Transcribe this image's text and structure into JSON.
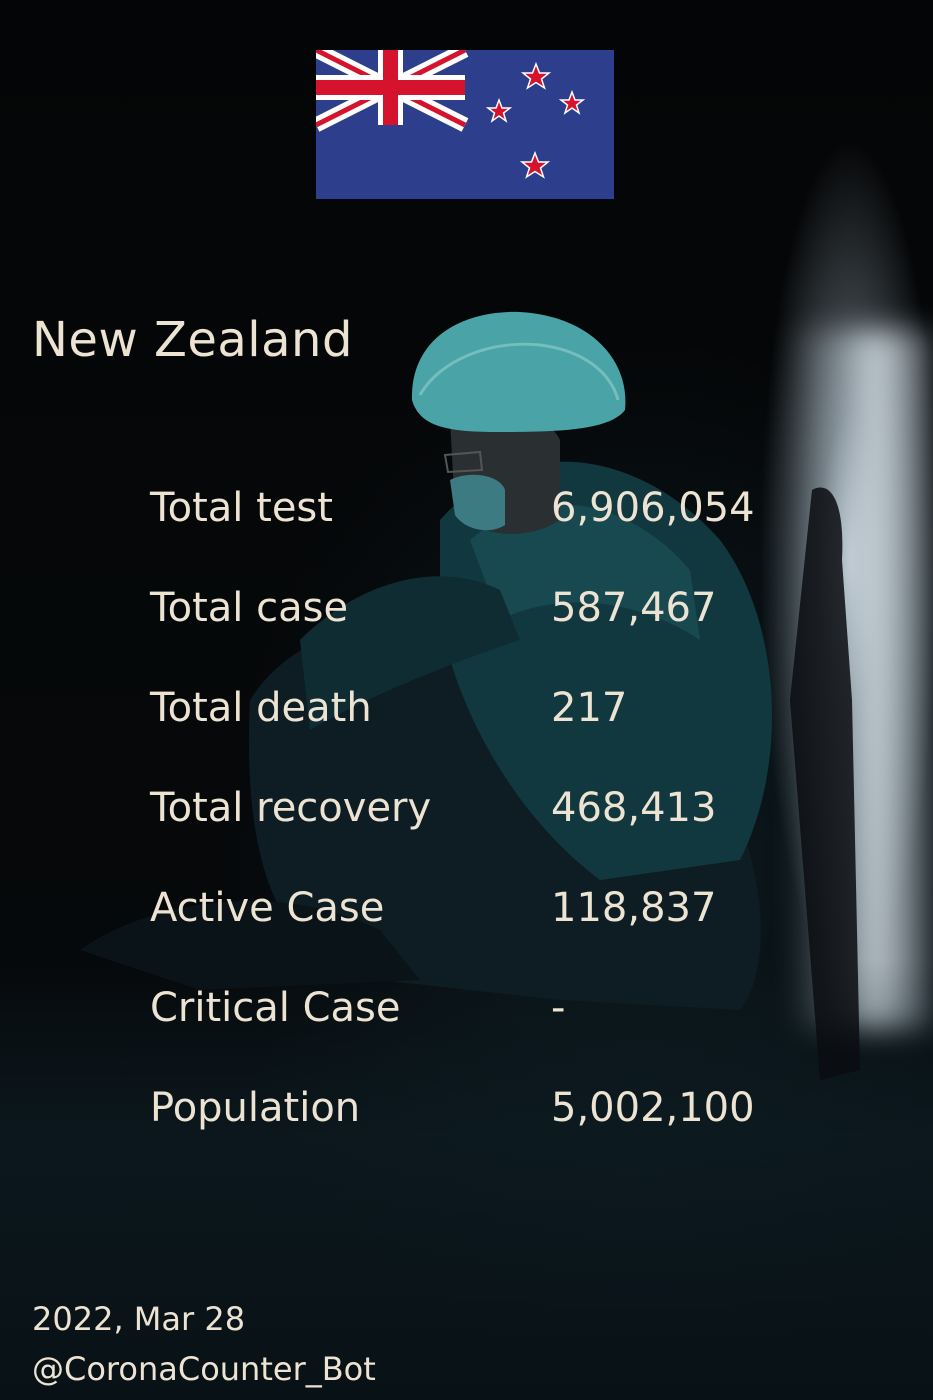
{
  "flag": {
    "icon": "new-zealand-flag-icon",
    "colors": {
      "blue": "#2d3e8c",
      "red": "#d5132d",
      "white": "#ffffff"
    }
  },
  "country": "New Zealand",
  "stats": [
    {
      "label": "Total test",
      "value": "6,906,054"
    },
    {
      "label": "Total case",
      "value": "587,467"
    },
    {
      "label": "Total death",
      "value": "217"
    },
    {
      "label": "Total recovery",
      "value": "468,413"
    },
    {
      "label": "Active Case",
      "value": "118,837"
    },
    {
      "label": "Critical Case",
      "value": "-"
    },
    {
      "label": "Population",
      "value": "5,002,100"
    }
  ],
  "footer": {
    "date": "2022, Mar 28",
    "handle": "@CoronaCounter_Bot"
  },
  "text_color": "#ece3d2"
}
